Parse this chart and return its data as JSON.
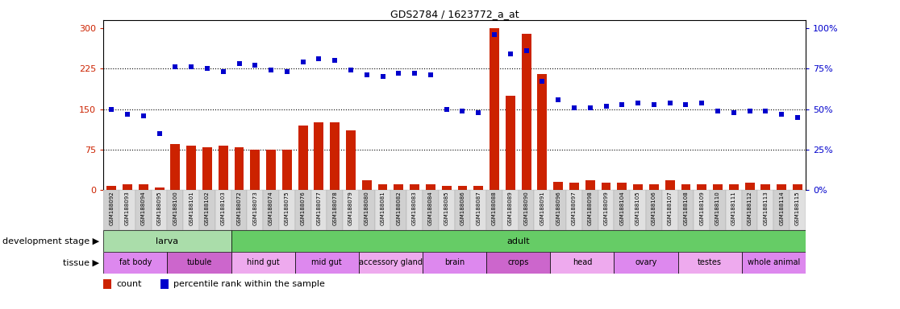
{
  "title": "GDS2784 / 1623772_a_at",
  "samples": [
    "GSM188092",
    "GSM188093",
    "GSM188094",
    "GSM188095",
    "GSM188100",
    "GSM188101",
    "GSM188102",
    "GSM188103",
    "GSM188072",
    "GSM188073",
    "GSM188074",
    "GSM188075",
    "GSM188076",
    "GSM188077",
    "GSM188078",
    "GSM188079",
    "GSM188080",
    "GSM188081",
    "GSM188082",
    "GSM188083",
    "GSM188084",
    "GSM188085",
    "GSM188086",
    "GSM188087",
    "GSM188088",
    "GSM188089",
    "GSM188090",
    "GSM188091",
    "GSM188096",
    "GSM188097",
    "GSM188098",
    "GSM188099",
    "GSM188104",
    "GSM188105",
    "GSM188106",
    "GSM188107",
    "GSM188108",
    "GSM188109",
    "GSM188110",
    "GSM188111",
    "GSM188112",
    "GSM188113",
    "GSM188114",
    "GSM188115"
  ],
  "count": [
    8,
    10,
    10,
    5,
    85,
    83,
    80,
    83,
    80,
    75,
    75,
    75,
    120,
    125,
    125,
    110,
    18,
    10,
    10,
    10,
    10,
    8,
    8,
    8,
    300,
    175,
    290,
    215,
    15,
    13,
    18,
    13,
    13,
    10,
    10,
    18,
    10,
    10,
    10,
    10,
    13,
    10,
    10,
    10
  ],
  "percentile_pct": [
    50,
    47,
    46,
    35,
    76,
    76,
    75,
    73,
    78,
    77,
    74,
    73,
    79,
    81,
    80,
    74,
    71,
    70,
    72,
    72,
    71,
    50,
    49,
    48,
    96,
    84,
    86,
    67,
    56,
    51,
    51,
    52,
    53,
    54,
    53,
    54,
    53,
    54,
    49,
    48,
    49,
    49,
    47,
    45
  ],
  "left_yticks": [
    0,
    75,
    150,
    225,
    300
  ],
  "right_yticks": [
    0,
    25,
    50,
    75,
    100
  ],
  "left_ylim": [
    0,
    315
  ],
  "right_ylim": [
    0,
    105
  ],
  "bar_color": "#cc2200",
  "dot_color": "#0000cc",
  "development_stages": [
    {
      "label": "larva",
      "start": 0,
      "end": 7,
      "color": "#aaddaa"
    },
    {
      "label": "adult",
      "start": 8,
      "end": 43,
      "color": "#66cc66"
    }
  ],
  "tissues": [
    {
      "label": "fat body",
      "start": 0,
      "end": 3,
      "color": "#dd88ee"
    },
    {
      "label": "tubule",
      "start": 4,
      "end": 7,
      "color": "#cc66cc"
    },
    {
      "label": "hind gut",
      "start": 8,
      "end": 11,
      "color": "#eeaaee"
    },
    {
      "label": "mid gut",
      "start": 12,
      "end": 15,
      "color": "#dd88ee"
    },
    {
      "label": "accessory gland",
      "start": 16,
      "end": 19,
      "color": "#eeaaee"
    },
    {
      "label": "brain",
      "start": 20,
      "end": 23,
      "color": "#dd88ee"
    },
    {
      "label": "crops",
      "start": 24,
      "end": 27,
      "color": "#cc66cc"
    },
    {
      "label": "head",
      "start": 28,
      "end": 31,
      "color": "#eeaaee"
    },
    {
      "label": "ovary",
      "start": 32,
      "end": 35,
      "color": "#dd88ee"
    },
    {
      "label": "testes",
      "start": 36,
      "end": 39,
      "color": "#eeaaee"
    },
    {
      "label": "whole animal",
      "start": 40,
      "end": 43,
      "color": "#dd88ee"
    }
  ]
}
